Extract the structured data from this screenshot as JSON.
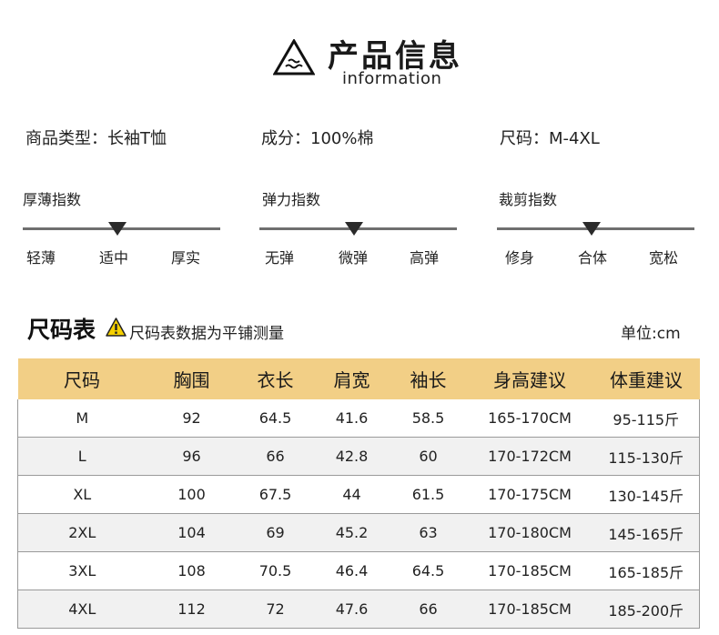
{
  "header": {
    "title": "产品信息",
    "subtitle": "information"
  },
  "info": {
    "type": "商品类型：长袖T恤",
    "material": "成分：100%棉",
    "size_range": "尺码：M-4XL"
  },
  "indexes": [
    {
      "label": "厚薄指数",
      "options": [
        "轻薄",
        "适中",
        "厚实"
      ],
      "selected": "适中"
    },
    {
      "label": "弹力指数",
      "options": [
        "无弹",
        "微弹",
        "高弹"
      ],
      "selected": "微弹"
    },
    {
      "label": "裁剪指数",
      "options": [
        "修身",
        "合体",
        "宽松"
      ],
      "selected": "合体"
    }
  ],
  "size_chart": {
    "title": "尺码表",
    "note": "尺码表数据为平铺测量",
    "unit": "单位:cm",
    "headers": [
      "尺码",
      "胸围",
      "衣长",
      "肩宽",
      "袖长",
      "身高建议",
      "体重建议"
    ],
    "rows": [
      [
        "M",
        "92",
        "64.5",
        "41.6",
        "58.5",
        "165-170CM",
        "95-115斤"
      ],
      [
        "L",
        "96",
        "66",
        "42.8",
        "60",
        "170-172CM",
        "115-130斤"
      ],
      [
        "XL",
        "100",
        "67.5",
        "44",
        "61.5",
        "170-175CM",
        "130-145斤"
      ],
      [
        "2XL",
        "104",
        "69",
        "45.2",
        "63",
        "170-180CM",
        "145-165斤"
      ],
      [
        "3XL",
        "108",
        "70.5",
        "46.4",
        "64.5",
        "170-185CM",
        "165-185斤"
      ],
      [
        "4XL",
        "112",
        "72",
        "47.6",
        "66",
        "170-185CM",
        "185-200斤"
      ]
    ]
  },
  "colors": {
    "header_bg": "#f2cf86",
    "alt_row_bg": "#f1f1f1",
    "warning": "#f5d000"
  },
  "icons": {
    "logo": "triangle-wave-icon",
    "warning": "warning-icon",
    "marker": "triangle-marker-icon"
  }
}
